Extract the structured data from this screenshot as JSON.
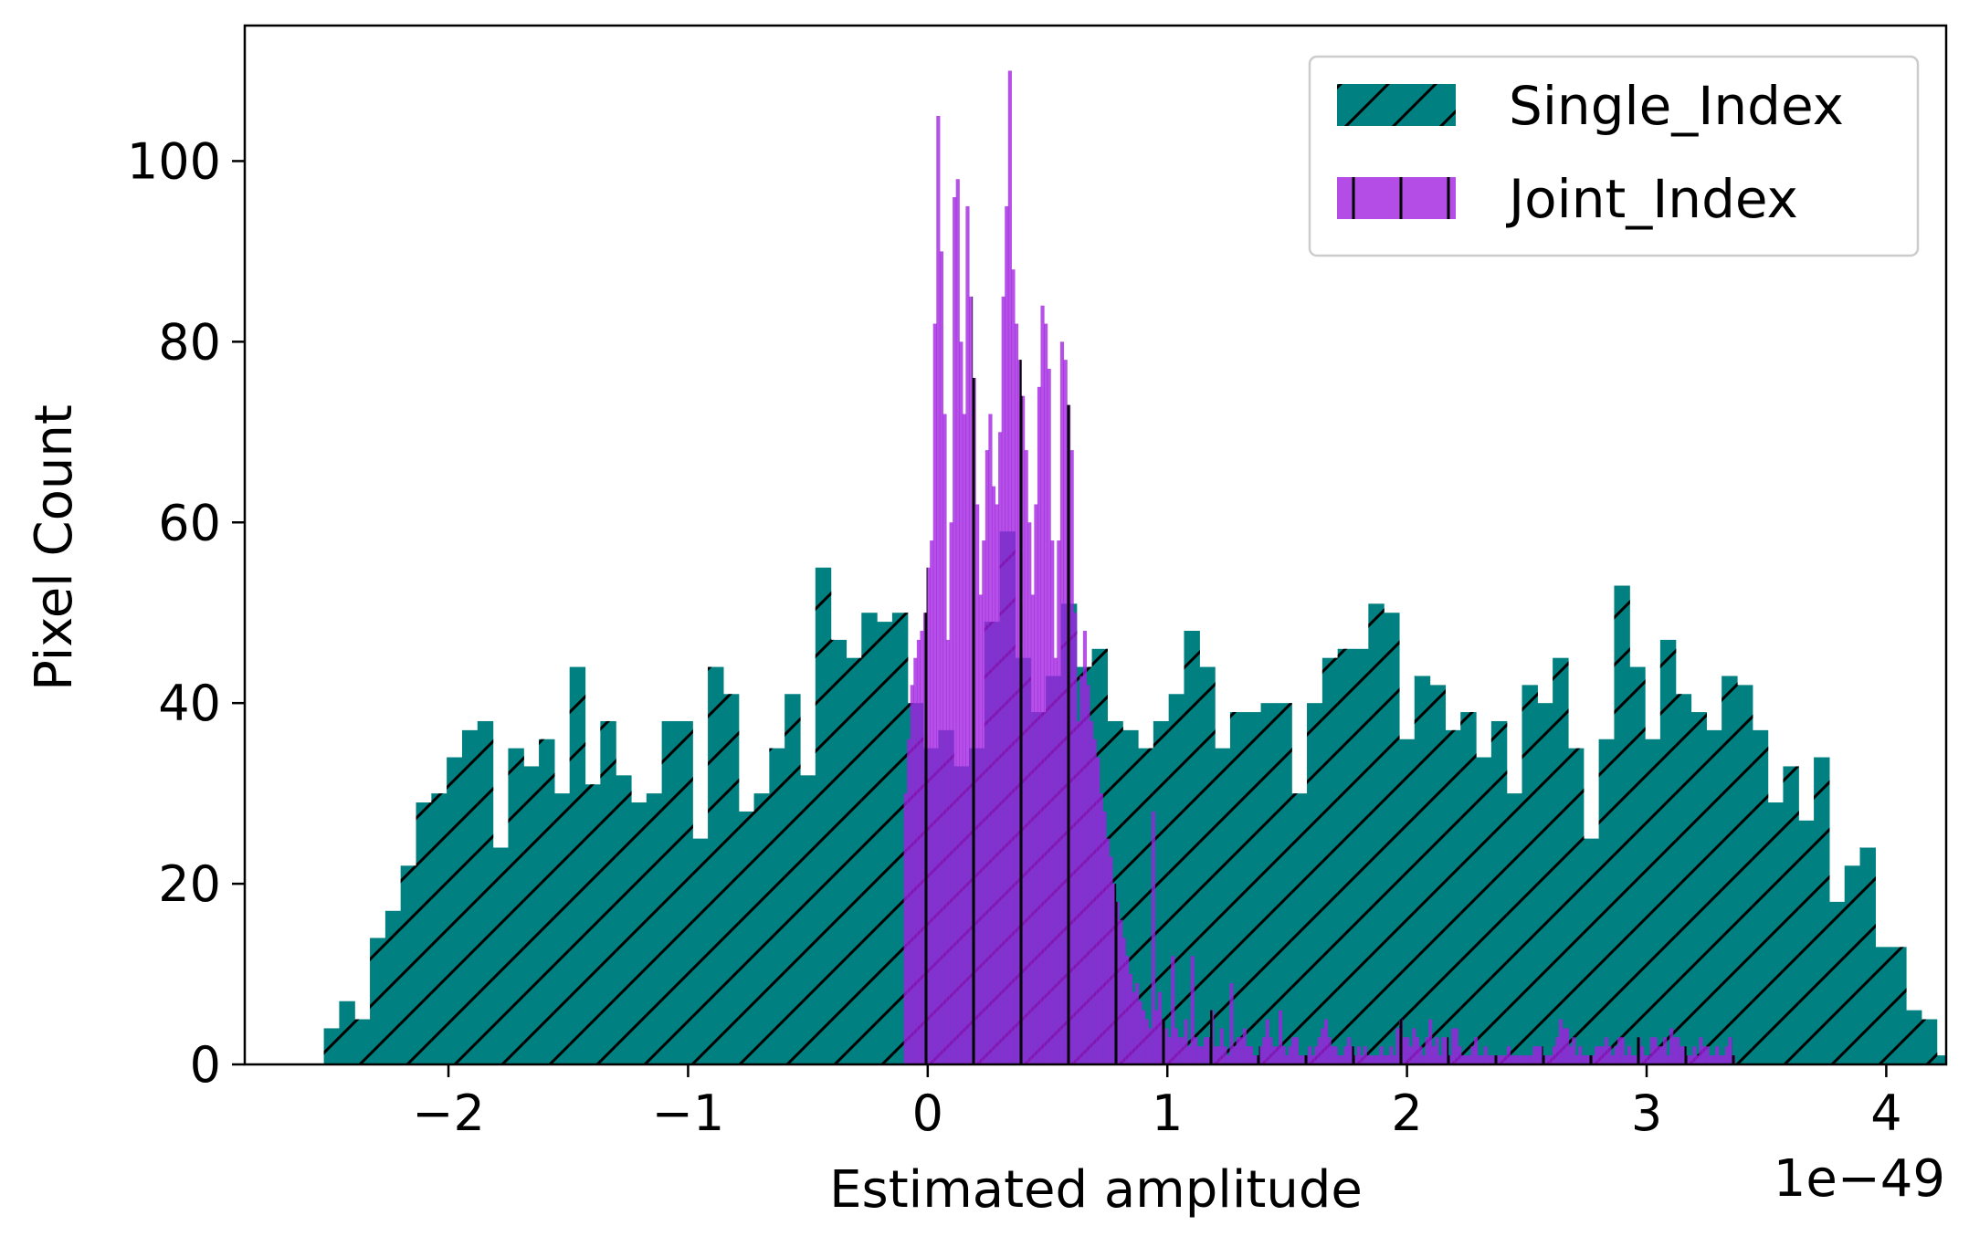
{
  "chart_data": {
    "type": "bar",
    "subtype": "overlapping histogram",
    "xlabel": "Estimated amplitude",
    "ylabel": "Pixel Count",
    "x_offset_text": "1e−49",
    "xlim": [
      -2.85,
      4.25
    ],
    "ylim": [
      0,
      115
    ],
    "xticks": [
      -2,
      -1,
      0,
      1,
      2,
      3,
      4
    ],
    "xtick_labels": [
      "−2",
      "−1",
      "0",
      "1",
      "2",
      "3",
      "4"
    ],
    "yticks": [
      0,
      20,
      40,
      60,
      80,
      100
    ],
    "ytick_labels": [
      "0",
      "20",
      "40",
      "60",
      "80",
      "100"
    ],
    "grid": false,
    "legend_position": "top-right",
    "series": [
      {
        "name": "Single_Index",
        "color": "#008080",
        "hatch": "diagonal",
        "bin_start": -2.52,
        "bin_width": 0.0641,
        "counts": [
          4,
          7,
          5,
          14,
          17,
          22,
          29,
          30,
          34,
          37,
          38,
          24,
          35,
          33,
          36,
          30,
          44,
          31,
          38,
          32,
          29,
          30,
          38,
          38,
          25,
          44,
          41,
          28,
          30,
          35,
          41,
          32,
          55,
          47,
          45,
          50,
          49,
          50,
          40,
          35,
          37,
          33,
          35,
          49,
          59,
          45,
          39,
          43,
          51,
          44,
          46,
          38,
          37,
          35,
          38,
          41,
          48,
          44,
          35,
          39,
          39,
          40,
          40,
          30,
          40,
          45,
          46,
          46,
          51,
          50,
          36,
          43,
          42,
          37,
          39,
          34,
          38,
          30,
          42,
          40,
          45,
          35,
          25,
          36,
          53,
          44,
          36,
          47,
          41,
          39,
          37,
          43,
          42,
          37,
          29,
          33,
          27,
          34,
          18,
          22,
          24,
          13,
          13,
          6,
          5,
          1,
          1,
          1,
          1,
          2,
          0,
          0,
          1,
          0,
          0,
          0,
          0,
          0,
          1
        ]
      },
      {
        "name": "Joint_Index",
        "color": "#a020e0",
        "hatch": "vertical",
        "bin_start": -0.1,
        "bin_width": 0.0136,
        "counts": [
          30,
          36,
          42,
          45,
          47,
          48,
          50,
          55,
          58,
          82,
          105,
          90,
          72,
          47,
          60,
          96,
          98,
          80,
          72,
          95,
          85,
          76,
          62,
          52,
          58,
          68,
          72,
          64,
          62,
          70,
          85,
          95,
          110,
          88,
          82,
          78,
          74,
          68,
          60,
          52,
          62,
          75,
          84,
          82,
          77,
          58,
          45,
          58,
          80,
          78,
          73,
          68,
          50,
          38,
          43,
          48,
          42,
          38,
          36,
          34,
          30,
          28,
          25,
          23,
          20,
          18,
          16,
          14,
          12,
          10,
          8,
          9,
          7,
          6,
          5,
          4,
          28,
          6,
          8,
          5,
          4,
          3,
          12,
          4,
          3,
          3,
          5,
          2,
          12,
          3,
          2,
          2,
          3,
          3,
          6,
          2,
          2,
          4,
          2,
          1,
          9,
          2,
          3,
          3,
          4,
          2,
          2,
          1,
          1,
          2,
          3,
          5,
          3,
          2,
          2,
          6,
          2,
          1,
          2,
          3,
          3,
          1,
          1,
          1,
          2,
          1,
          2,
          3,
          4,
          5,
          3,
          2,
          2,
          1,
          1,
          2,
          3,
          2,
          1,
          2,
          1,
          2,
          1,
          1,
          1,
          1,
          2,
          1,
          1,
          2,
          1,
          4,
          5,
          3,
          3,
          2,
          4,
          3,
          2,
          1,
          3,
          5,
          2,
          3,
          1,
          3,
          3,
          1,
          4,
          4,
          2,
          1,
          1,
          1,
          2,
          3,
          1,
          1,
          2,
          1,
          1,
          1,
          1,
          1,
          1,
          2,
          1,
          1,
          1,
          1,
          1,
          1,
          1,
          2,
          2,
          2,
          1,
          1,
          1,
          2,
          3,
          5,
          4,
          4,
          2,
          3,
          1,
          2,
          1,
          1,
          1,
          1,
          2,
          2,
          2,
          3,
          2,
          1,
          2,
          3,
          3,
          1,
          2,
          1,
          1,
          3,
          2,
          1,
          1,
          3,
          3,
          2,
          2,
          3,
          1,
          4,
          3,
          3,
          2,
          2,
          1,
          1,
          2,
          1,
          3,
          2,
          2,
          1,
          1,
          2,
          1,
          1,
          2,
          3,
          1
        ]
      }
    ]
  }
}
